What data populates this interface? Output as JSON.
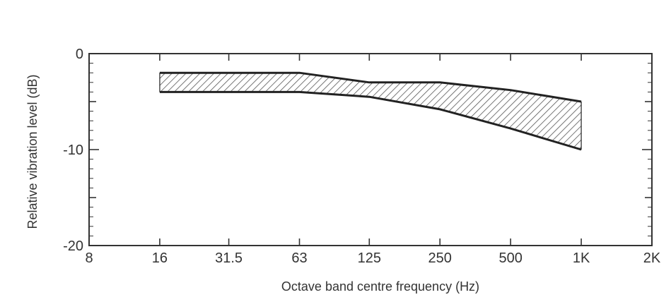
{
  "chart_data": {
    "type": "area",
    "title": "",
    "xlabel": "Octave band centre frequency (Hz)",
    "ylabel": "Relative vibration level (dB)",
    "x_tick_labels": [
      "8",
      "16",
      "31.5",
      "63",
      "125",
      "250",
      "500",
      "1K",
      "2K"
    ],
    "x_scale": "log2 (octave bands)",
    "y_tick_labels": [
      "0",
      "-10",
      "-20"
    ],
    "ylim": [
      -20,
      0
    ],
    "grid": false,
    "legend": "none",
    "band": {
      "fill": "diagonal hatching",
      "x": [
        16,
        31.5,
        63,
        125,
        250,
        500,
        1000
      ],
      "upper": [
        -2,
        -2,
        -2,
        -3,
        -3,
        -3.8,
        -5
      ],
      "lower": [
        -4,
        -4,
        -4,
        -4.5,
        -5.8,
        -7.8,
        -10
      ]
    },
    "colors": {
      "line": "#222222",
      "hatch": "#555555",
      "axis": "#333333"
    }
  }
}
